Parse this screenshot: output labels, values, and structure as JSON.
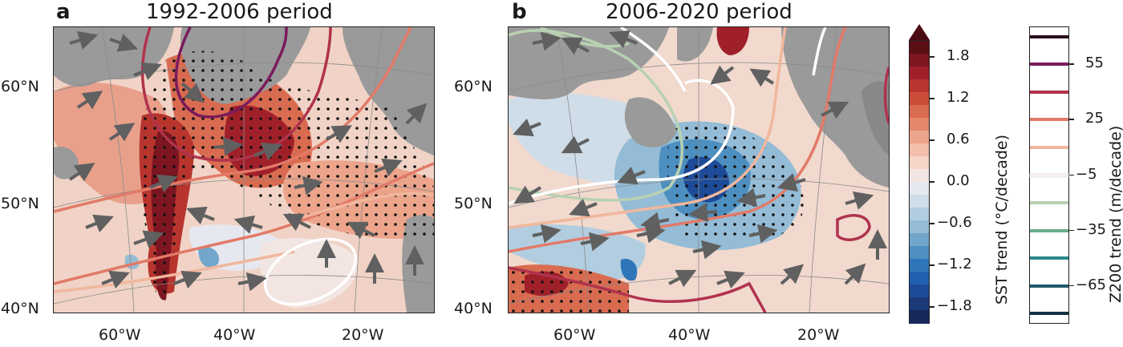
{
  "panels": [
    {
      "letter": "a",
      "title": "1992-2006 period"
    },
    {
      "letter": "b",
      "title": "2006-2020 period"
    }
  ],
  "axes": {
    "lat_labels": [
      "60°N",
      "50°N",
      "40°N"
    ],
    "lon_labels": [
      "60°W",
      "40°W",
      "20°W"
    ]
  },
  "sst_colorbar": {
    "title": "SST trend (°C/decade)",
    "ticks": [
      "1.8",
      "1.2",
      "0.6",
      "0.0",
      "−0.6",
      "−1.2",
      "−1.8"
    ],
    "colors": [
      "#5a0f16",
      "#7d1620",
      "#a0202a",
      "#b8352e",
      "#c94d38",
      "#d86b50",
      "#e3886c",
      "#eca48b",
      "#f2bfaa",
      "#f6d6c9",
      "#f3e6e2",
      "#e6e8ef",
      "#cfdde9",
      "#b2cde0",
      "#94bcd6",
      "#72a7cb",
      "#4d8fc0",
      "#2f76b8",
      "#2160ae",
      "#1d4b97",
      "#1b3878",
      "#18285a"
    ],
    "extend_top_color": "#4a0a12"
  },
  "z200_colorbar": {
    "title": "Z200 trend (m/decade)",
    "ticks": [
      "55",
      "25",
      "−5",
      "−35",
      "−65"
    ],
    "lines": [
      {
        "value": 70,
        "color": "#2a0b1f"
      },
      {
        "value": 55,
        "color": "#7a1b5c"
      },
      {
        "value": 40,
        "color": "#b0334c"
      },
      {
        "value": 25,
        "color": "#e27a68"
      },
      {
        "value": 10,
        "color": "#f0b79d"
      },
      {
        "value": -5,
        "color": "#f7f0ee"
      },
      {
        "value": -20,
        "color": "#b9d1b2"
      },
      {
        "value": -35,
        "color": "#6bae8a"
      },
      {
        "value": -50,
        "color": "#2a8a8a"
      },
      {
        "value": -65,
        "color": "#1f5a6c"
      },
      {
        "value": -80,
        "color": "#123244"
      }
    ]
  },
  "colors": {
    "land": "#9a9a9a",
    "arrow": "#606060",
    "stipple": "#111111",
    "warm_dark": "#7d1620",
    "warm_mid": "#c94d38",
    "warm_light": "#eca48b",
    "cool_dark": "#1d4b97",
    "cool_mid": "#4d8fc0",
    "cool_light": "#b2cde0",
    "z_pos_high": "#7a1b5c",
    "z_pos_mid": "#b0334c",
    "z_pos_low": "#e27a68",
    "z_pos_faint": "#f0b79d",
    "z_zero": "#ffffff",
    "z_neg": "#b9d1b2"
  }
}
